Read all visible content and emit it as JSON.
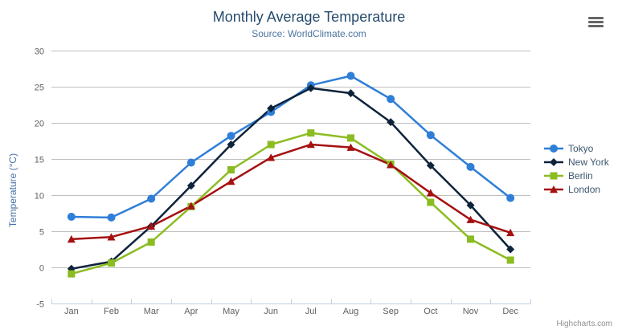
{
  "chart_data": {
    "type": "line",
    "title": "Monthly Average Temperature",
    "subtitle": "Source: WorldClimate.com",
    "xlabel": "",
    "ylabel": "Temperature (°C)",
    "categories": [
      "Jan",
      "Feb",
      "Mar",
      "Apr",
      "May",
      "Jun",
      "Jul",
      "Aug",
      "Sep",
      "Oct",
      "Nov",
      "Dec"
    ],
    "ylim": [
      -5,
      30
    ],
    "yticks": [
      -5,
      0,
      5,
      10,
      15,
      20,
      25,
      30
    ],
    "grid": true,
    "legend_position": "right",
    "series": [
      {
        "name": "Tokyo",
        "color": "#2f7ed8",
        "marker": "circle",
        "values": [
          7.0,
          6.9,
          9.5,
          14.5,
          18.2,
          21.5,
          25.2,
          26.5,
          23.3,
          18.3,
          13.9,
          9.6
        ]
      },
      {
        "name": "New York",
        "color": "#0d233a",
        "marker": "diamond",
        "values": [
          -0.2,
          0.8,
          5.7,
          11.3,
          17.0,
          22.0,
          24.8,
          24.1,
          20.1,
          14.1,
          8.6,
          2.5
        ]
      },
      {
        "name": "Berlin",
        "color": "#8bbc21",
        "marker": "square",
        "values": [
          -0.9,
          0.6,
          3.5,
          8.4,
          13.5,
          17.0,
          18.6,
          17.9,
          14.3,
          9.0,
          3.9,
          1.0
        ]
      },
      {
        "name": "London",
        "color": "#a51010",
        "marker": "triangle",
        "values": [
          3.9,
          4.2,
          5.7,
          8.5,
          11.9,
          15.2,
          17.0,
          16.6,
          14.2,
          10.3,
          6.6,
          4.8
        ]
      }
    ]
  },
  "credits": "Highcharts.com",
  "icons": {
    "context_menu": "hamburger-icon"
  },
  "theme": {
    "title_color": "#274b6d",
    "subtitle_color": "#4d759e",
    "axis_title_color": "#4572a7",
    "axis_label_color": "#606060",
    "grid_color": "#c0c0c0",
    "axis_line_color": "#c0d0e0",
    "legend_text_color": "#3e576f",
    "credits_color": "#909090",
    "background_color": "#ffffff"
  }
}
